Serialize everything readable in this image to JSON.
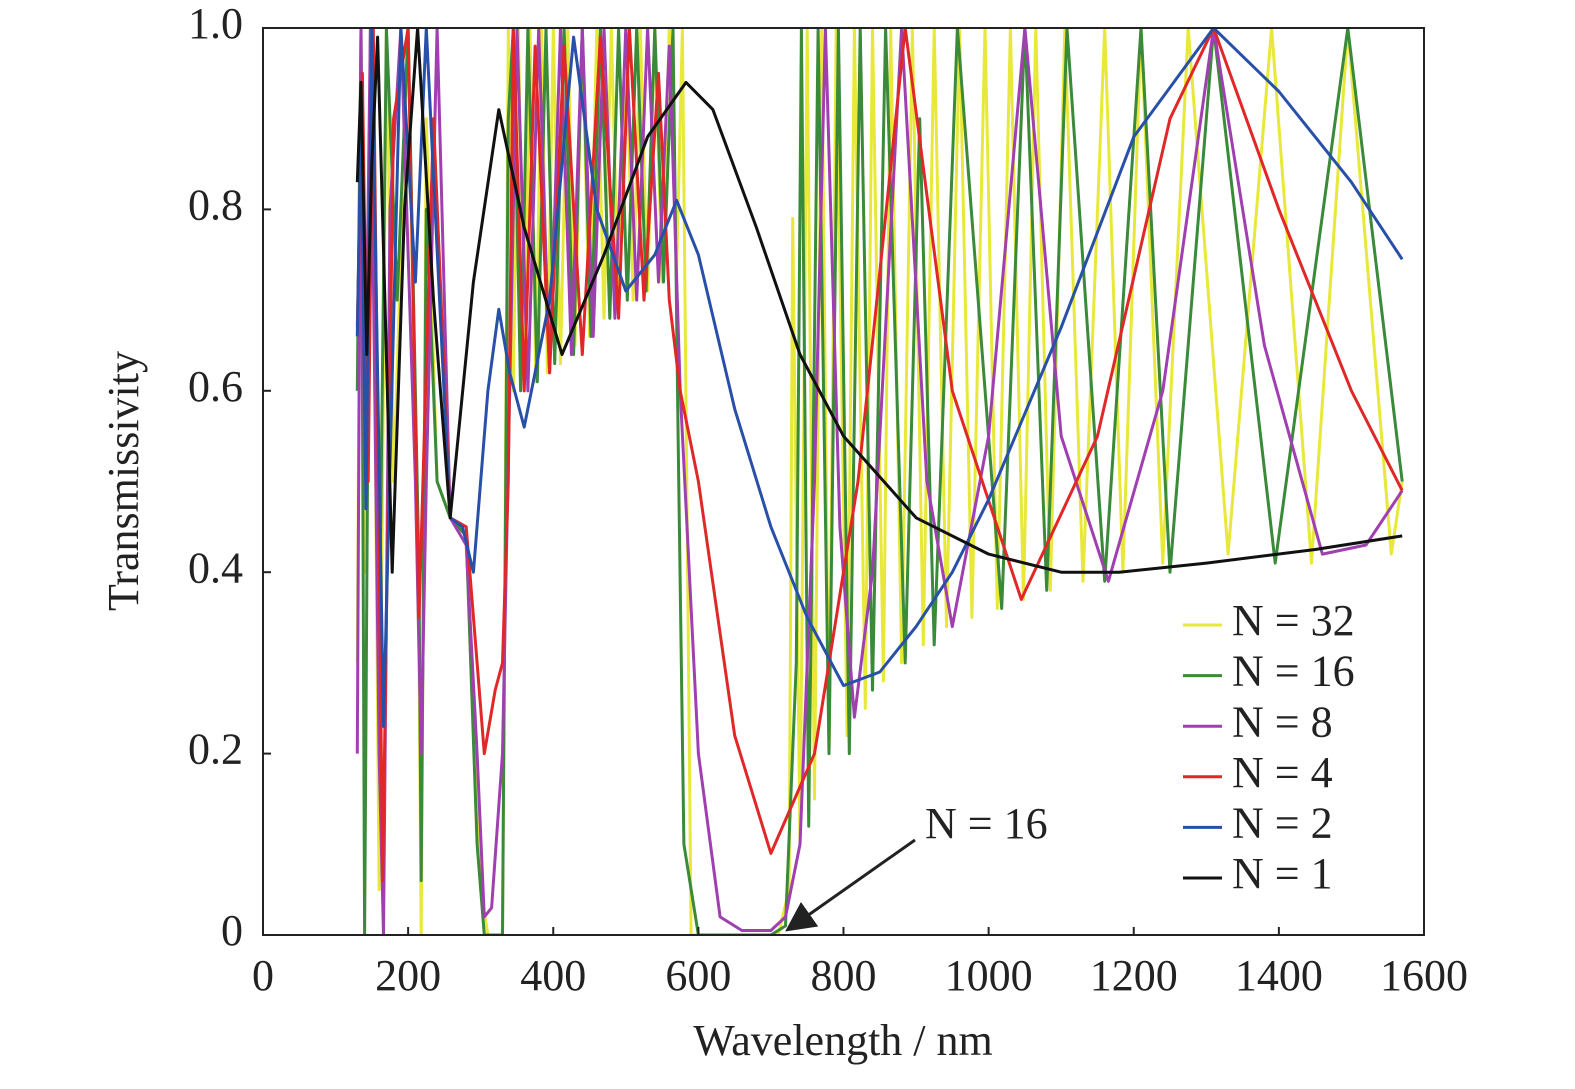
{
  "chart_data": {
    "type": "line",
    "xlabel": "Wavelength / nm",
    "ylabel": "Transmissivity",
    "xlim": [
      0,
      1600
    ],
    "ylim": [
      0,
      1
    ],
    "xticks": [
      0,
      200,
      400,
      600,
      800,
      1000,
      1200,
      1400,
      1600
    ],
    "yticks": [
      0,
      0.2,
      0.4,
      0.6,
      0.8,
      {
        "value": 1,
        "label": "1.0"
      }
    ],
    "legend": "lower right",
    "annotation": "N = 16",
    "series": [
      {
        "name": "N = 32",
        "color": "#e8e83a",
        "x": [
          130,
          135,
          140,
          150,
          160,
          170,
          180,
          200,
          215,
          218,
          225,
          240,
          258,
          280,
          300,
          310,
          330,
          338,
          345,
          352,
          360,
          368,
          376,
          384,
          392,
          400,
          410,
          420,
          430,
          440,
          450,
          460,
          470,
          480,
          490,
          500,
          510,
          520,
          530,
          540,
          550,
          560,
          570,
          578,
          590,
          650,
          710,
          725,
          730,
          740,
          750,
          760,
          770,
          780,
          790,
          805,
          815,
          830,
          840,
          855,
          865,
          880,
          895,
          910,
          925,
          942,
          960,
          977,
          995,
          1012,
          1030,
          1048,
          1065,
          1085,
          1105,
          1130,
          1160,
          1185,
          1210,
          1240,
          1275,
          1330,
          1390,
          1445,
          1495,
          1555,
          1570
        ],
        "values": [
          0.3,
          1,
          0.4,
          1,
          0.05,
          1,
          0.5,
          1,
          0.3,
          0,
          0.9,
          0.5,
          0.46,
          0.44,
          0.05,
          0,
          0,
          1,
          0.6,
          1,
          0.6,
          1,
          0.61,
          1,
          0.62,
          1,
          0.63,
          1,
          0.65,
          1,
          0.66,
          1,
          0.68,
          1,
          0.69,
          1,
          0.7,
          1,
          0.71,
          1,
          0.72,
          1,
          0.73,
          1,
          0,
          0,
          0,
          0.05,
          0.79,
          0.1,
          1,
          0.15,
          1,
          0.2,
          1,
          0.22,
          1,
          0.25,
          1,
          0.28,
          1,
          0.3,
          1,
          0.32,
          1,
          0.34,
          1,
          0.35,
          1,
          0.36,
          1,
          0.37,
          1,
          0.38,
          1,
          0.39,
          1,
          0.4,
          1,
          0.41,
          1,
          0.42,
          1,
          0.41,
          1,
          0.42,
          0.5
        ]
      },
      {
        "name": "N = 16",
        "color": "#3a8a3a",
        "x": [
          130,
          135,
          140,
          148,
          160,
          170,
          185,
          200,
          215,
          218,
          225,
          240,
          258,
          280,
          295,
          305,
          330,
          338,
          345,
          355,
          365,
          378,
          390,
          402,
          415,
          428,
          440,
          452,
          465,
          478,
          490,
          502,
          515,
          528,
          540,
          552,
          565,
          572,
          580,
          600,
          700,
          720,
          735,
          742,
          752,
          765,
          780,
          793,
          808,
          823,
          840,
          858,
          885,
          905,
          925,
          957,
          1018,
          1050,
          1080,
          1108,
          1160,
          1210,
          1250,
          1310,
          1395,
          1495,
          1570
        ],
        "values": [
          0.6,
          1,
          0,
          1,
          0.3,
          1,
          0.7,
          1,
          0.4,
          0.06,
          0.8,
          0.5,
          0.46,
          0.44,
          0.1,
          0,
          0,
          0.9,
          1,
          0.6,
          1,
          0.61,
          1,
          0.63,
          1,
          0.64,
          1,
          0.66,
          1,
          0.68,
          1,
          0.7,
          1,
          0.71,
          1,
          0.72,
          1,
          0.55,
          0.1,
          0,
          0,
          0.01,
          0.3,
          1,
          0.12,
          1,
          0.2,
          1,
          0.2,
          1,
          0.27,
          1,
          0.3,
          0.9,
          0.32,
          1,
          0.36,
          1,
          0.38,
          1,
          0.39,
          1,
          0.4,
          1,
          0.41,
          1,
          0.5
        ]
      },
      {
        "name": "N = 8",
        "color": "#a040b0",
        "x": [
          130,
          135,
          140,
          148,
          160,
          166,
          175,
          190,
          210,
          218,
          225,
          240,
          258,
          280,
          295,
          305,
          315,
          330,
          340,
          350,
          365,
          380,
          395,
          410,
          425,
          440,
          455,
          470,
          485,
          500,
          515,
          530,
          545,
          560,
          575,
          600,
          630,
          660,
          700,
          720,
          740,
          760,
          775,
          795,
          815,
          840,
          880,
          915,
          950,
          1000,
          1050,
          1100,
          1165,
          1240,
          1310,
          1380,
          1460,
          1520,
          1570
        ],
        "values": [
          0.2,
          1,
          0.5,
          1,
          0.2,
          0,
          0.8,
          1,
          0.5,
          0.2,
          0.5,
          1,
          0.46,
          0.43,
          0.2,
          0.02,
          0.03,
          0.2,
          0.6,
          1,
          0.6,
          1,
          0.62,
          1,
          0.64,
          1,
          0.66,
          1,
          0.68,
          1,
          0.7,
          1,
          0.72,
          0.98,
          0.6,
          0.2,
          0.02,
          0.005,
          0.005,
          0.02,
          0.1,
          0.5,
          1,
          0.45,
          0.24,
          0.4,
          1,
          0.5,
          0.34,
          0.55,
          1,
          0.55,
          0.39,
          0.6,
          1,
          0.65,
          0.42,
          0.43,
          0.49
        ]
      },
      {
        "name": "N = 4",
        "color": "#e02828",
        "x": [
          130,
          137,
          145,
          152,
          165,
          180,
          200,
          215,
          235,
          258,
          280,
          295,
          305,
          320,
          330,
          338,
          345,
          360,
          375,
          395,
          415,
          440,
          465,
          490,
          505,
          525,
          545,
          560,
          575,
          600,
          650,
          700,
          760,
          820,
          885,
          950,
          1045,
          1150,
          1250,
          1310,
          1400,
          1500,
          1570
        ],
        "values": [
          0.67,
          0.95,
          0.5,
          1,
          0.06,
          0.9,
          1,
          0.35,
          0.9,
          0.46,
          0.45,
          0.3,
          0.2,
          0.27,
          0.3,
          0.5,
          1,
          0.6,
          0.98,
          0.62,
          0.98,
          0.64,
          0.99,
          0.68,
          1,
          0.7,
          0.95,
          0.7,
          0.6,
          0.5,
          0.22,
          0.09,
          0.2,
          0.5,
          1,
          0.6,
          0.37,
          0.55,
          0.9,
          1,
          0.8,
          0.6,
          0.49
        ]
      },
      {
        "name": "N = 2",
        "color": "#2850a8",
        "x": [
          130,
          135,
          142,
          150,
          166,
          190,
          210,
          225,
          258,
          275,
          290,
          310,
          325,
          340,
          360,
          395,
          428,
          460,
          500,
          540,
          570,
          600,
          650,
          700,
          750,
          800,
          850,
          900,
          950,
          1000,
          1100,
          1200,
          1310,
          1400,
          1500,
          1570
        ],
        "values": [
          0.66,
          0.9,
          0.47,
          1,
          0.23,
          1,
          0.72,
          1,
          0.46,
          0.45,
          0.4,
          0.6,
          0.69,
          0.62,
          0.56,
          0.7,
          0.99,
          0.8,
          0.71,
          0.75,
          0.81,
          0.75,
          0.58,
          0.45,
          0.35,
          0.275,
          0.29,
          0.34,
          0.4,
          0.48,
          0.67,
          0.88,
          1,
          0.93,
          0.83,
          0.745
        ]
      },
      {
        "name": "N = 1",
        "color": "#111111",
        "x": [
          130,
          135,
          143,
          150,
          158,
          168,
          178,
          195,
          213,
          235,
          258,
          290,
          325,
          360,
          412,
          470,
          530,
          583,
          620,
          680,
          740,
          800,
          900,
          1000,
          1100,
          1180,
          1300,
          1450,
          1570
        ],
        "values": [
          0.83,
          0.94,
          0.64,
          0.85,
          0.99,
          0.7,
          0.4,
          0.8,
          1,
          0.7,
          0.46,
          0.72,
          0.91,
          0.78,
          0.64,
          0.75,
          0.88,
          0.94,
          0.91,
          0.78,
          0.64,
          0.55,
          0.46,
          0.42,
          0.4,
          0.4,
          0.41,
          0.425,
          0.44
        ]
      }
    ]
  }
}
